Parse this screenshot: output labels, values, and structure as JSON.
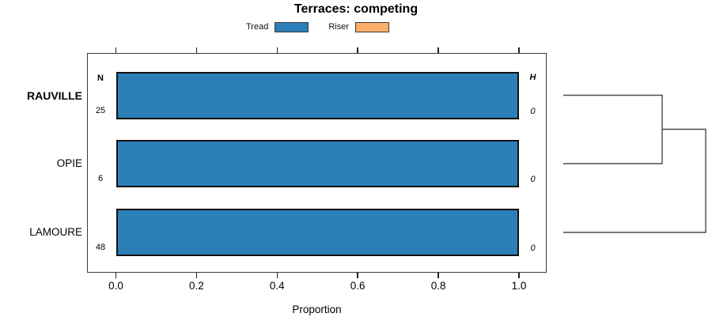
{
  "title": "Terraces: competing",
  "legend": [
    {
      "label": "Tread",
      "color": "#2C7FB8"
    },
    {
      "label": "Riser",
      "color": "#FDAE6B"
    }
  ],
  "columns": {
    "n_header": "N",
    "h_header": "H"
  },
  "chart_data": {
    "type": "bar",
    "orientation": "horizontal",
    "title": "Terraces: competing",
    "categories": [
      "RAUVILLE",
      "OPIE",
      "LAMOURE"
    ],
    "highlighted_category": "RAUVILLE",
    "series": [
      {
        "name": "Tread",
        "values": [
          1.0,
          1.0,
          1.0
        ],
        "color": "#2C7FB8"
      },
      {
        "name": "Riser",
        "values": [
          0.0,
          0.0,
          0.0
        ],
        "color": "#FDAE6B"
      }
    ],
    "n_values": [
      25,
      6,
      48
    ],
    "h_values": [
      0,
      0,
      0
    ],
    "xlabel": "Proportion",
    "xlim": [
      0,
      1
    ],
    "xticks": [
      "0.0",
      "0.2",
      "0.4",
      "0.6",
      "0.8",
      "1.0"
    ],
    "grid": false,
    "legend_position": "top-center",
    "dendrogram": {
      "leaf_order": [
        "RAUVILLE",
        "OPIE",
        "LAMOURE"
      ],
      "merges": [
        {
          "join": [
            "RAUVILLE",
            "OPIE"
          ],
          "height": 0
        },
        {
          "join": [
            "RAUVILLE+OPIE",
            "LAMOURE"
          ],
          "height": 0
        }
      ]
    }
  }
}
